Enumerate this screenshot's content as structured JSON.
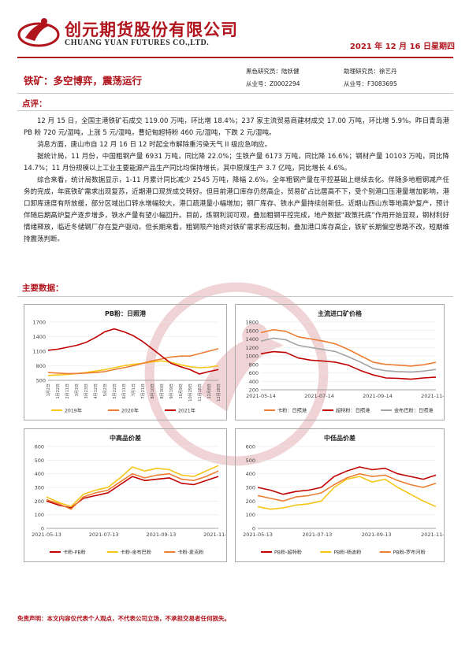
{
  "header": {
    "company_cn": "创元期货股份有限公司",
    "company_en": "CHUANG YUAN FUTURES CO.,LTD.",
    "date": "2021 年 12 月 16 日星期四"
  },
  "report": {
    "subject": "铁矿：多空博弈，震荡运行",
    "analysts": [
      {
        "role": "黑色研究员：陆妖健",
        "cert": "从业号：Z0002294"
      },
      {
        "role": "助理研究员：徐艺丹",
        "cert": "从业号：F3083695"
      }
    ]
  },
  "comment": {
    "heading": "点评：",
    "paragraphs": [
      "12 月 15 日，全国主港铁矿石成交 119.00 万吨，环比增 18.4%；237 家主流贸易商建材成交 17.00 万吨，环比增 5.9%。昨日青岛港 PB 粉 720 元/湿吨，上涨 5 元/湿吨，曹妃甸超特粉 460 元/湿吨，下跌 2 元/湿吨。",
      "消息方面，唐山市自 12 月 16 日 12 时起全市解除重污染天气 II 级应急响应。",
      "据统计局，11 月份，中国粗钢产量 6931 万吨，同比降 22.0%；生铁产量 6173 万吨，同比降 16.6%；钢材产量 10103 万吨，同比降 14.7%；11 月份规模以上工业主要能源产品生产同比均保持增长，其中原煤生产 3.7 亿吨，同比增长 4.6%。",
      "综合来看，统计局数据显示，1-11 月累计同比减少 2545 万吨，降幅 2.6%，全年粗钢产量在平控基础上继续去化。伴随多地粗钢减产任务的完成，年底铁矿需求出现复苏，近期港口现货成交转好。但目前港口库存仍然高企，贸易矿占比居高不下，受个别港口压港量增加影响，港口卸库速度有所放缓，部分区域出口转水增幅较大，港口疏港量小幅增加；钢厂库存、铁水产量持续创新低。近期山西山东等地高炉复产，预计伴随后期高炉复产逐步增多，铁水产量有望小幅回升。目前，炼钢利润可观，叠加粗钢平控完成，地产数据“政策托底”作用开始显现，钢材利好情绪释放，临近冬储钢厂存在复产驱动。但长期来看，粗钢限产始终对铁矿需求形成压制，叠加港口库存高企，铁矿长期偏空思路不改，短期维持震荡判断。"
    ]
  },
  "data_section": {
    "heading": "主要数据："
  },
  "disclaimer": "免责声明：本文内容仅代表个人观点，不代表公司立场，不承担交易者任何损失。",
  "colors": {
    "brand_red": "#b0141d",
    "orange": "#ed7d31",
    "gold": "#f5c518",
    "dark_red": "#c00000",
    "grey": "#a5a5a5"
  },
  "chart_data": [
    {
      "type": "line",
      "title": "PB粉：日照港",
      "y_ticks": [
        500,
        800,
        1100,
        1400,
        1700
      ],
      "ylim": [
        500,
        1700
      ],
      "x_ticks": [
        "1月2日",
        "1月22日",
        "2月11日",
        "3月3日",
        "3月23日",
        "4月12日",
        "5月2日",
        "5月22日",
        "6月11日",
        "7月1日",
        "7月21日",
        "8月10日",
        "8月30日",
        "9月19日",
        "10月9日",
        "10月29日",
        "11月18日",
        "12月8日",
        "12月28日"
      ],
      "legend_position": "bottom",
      "series": [
        {
          "name": "2019年",
          "color": "#f5c518",
          "values": [
            600,
            610,
            620,
            640,
            660,
            690,
            720,
            760,
            800,
            830,
            850,
            880,
            900,
            870,
            820,
            780,
            760,
            770,
            800
          ]
        },
        {
          "name": "2020年",
          "color": "#ed7d31",
          "values": [
            660,
            650,
            640,
            640,
            650,
            660,
            680,
            720,
            760,
            800,
            850,
            900,
            940,
            980,
            1000,
            1000,
            1050,
            1100,
            1150
          ]
        },
        {
          "name": "2021年",
          "color": "#c00000",
          "values": [
            1120,
            1140,
            1180,
            1220,
            1280,
            1380,
            1500,
            1560,
            1500,
            1420,
            1300,
            1150,
            1000,
            850,
            780,
            720,
            630,
            680,
            720
          ]
        }
      ]
    },
    {
      "type": "line",
      "title": "主流进口矿价格",
      "y_ticks": [
        200,
        400,
        600,
        800,
        1000,
        1200,
        1400,
        1600,
        1800
      ],
      "ylim": [
        200,
        1800
      ],
      "x_ticks": [
        "2021-05-14",
        "2021-07-14",
        "2021-09-14",
        "2021-11-14"
      ],
      "legend_position": "bottom",
      "series": [
        {
          "name": "卡粉：日照港",
          "color": "#ed7d31",
          "values": [
            1550,
            1620,
            1580,
            1450,
            1400,
            1350,
            1280,
            1150,
            1000,
            850,
            800,
            780,
            760,
            790,
            850
          ]
        },
        {
          "name": "超特粉：日照港",
          "color": "#c00000",
          "values": [
            1050,
            1100,
            1080,
            950,
            900,
            880,
            850,
            780,
            650,
            550,
            480,
            470,
            450,
            480,
            500
          ]
        },
        {
          "name": "金布巴粉：日照港",
          "color": "#a5a5a5",
          "values": [
            1350,
            1420,
            1380,
            1250,
            1200,
            1150,
            1100,
            980,
            850,
            700,
            650,
            630,
            620,
            640,
            680
          ]
        }
      ]
    },
    {
      "type": "line",
      "title": "中高品价差",
      "y_ticks": [
        0,
        100,
        200,
        300,
        400,
        500,
        600
      ],
      "ylim": [
        0,
        600
      ],
      "x_ticks": [
        "2021-05-13",
        "2021-07-13",
        "2021-09-13",
        "2021-11-13"
      ],
      "legend_position": "bottom",
      "series": [
        {
          "name": "卡粉-PB粉",
          "color": "#c00000",
          "values": [
            200,
            170,
            150,
            220,
            240,
            260,
            320,
            380,
            350,
            360,
            370,
            330,
            320,
            350,
            380
          ]
        },
        {
          "name": "卡粉-金布巴粉",
          "color": "#f5c518",
          "values": [
            230,
            190,
            160,
            250,
            280,
            300,
            370,
            450,
            420,
            440,
            430,
            390,
            380,
            420,
            460
          ]
        },
        {
          "name": "卡粉-麦克粉",
          "color": "#ed7d31",
          "values": [
            210,
            180,
            140,
            230,
            260,
            280,
            340,
            400,
            370,
            390,
            400,
            360,
            350,
            380,
            420
          ]
        }
      ]
    },
    {
      "type": "line",
      "title": "中低品价差",
      "y_ticks": [
        0,
        100,
        200,
        300,
        400,
        500,
        600
      ],
      "ylim": [
        0,
        600
      ],
      "x_ticks": [
        "2021-05-13",
        "2021-07-13",
        "2021-09-13",
        "2021-11-13"
      ],
      "legend_position": "bottom",
      "series": [
        {
          "name": "PB粉-超特粉",
          "color": "#c00000",
          "values": [
            300,
            280,
            250,
            270,
            280,
            300,
            380,
            420,
            450,
            430,
            440,
            400,
            380,
            360,
            390
          ]
        },
        {
          "name": "PB粉-杨迪粉",
          "color": "#f5c518",
          "values": [
            160,
            140,
            150,
            170,
            180,
            200,
            300,
            360,
            380,
            340,
            360,
            300,
            250,
            200,
            160
          ]
        },
        {
          "name": "PB粉-罗布河粉",
          "color": "#ed7d31",
          "values": [
            240,
            220,
            200,
            230,
            240,
            260,
            320,
            370,
            400,
            380,
            390,
            350,
            320,
            300,
            330
          ]
        }
      ]
    }
  ]
}
